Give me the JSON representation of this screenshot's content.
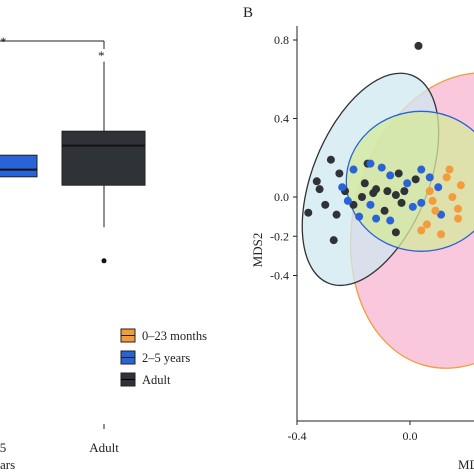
{
  "panel_a": {
    "significance": "*",
    "legend": [
      {
        "label": "0–23 months",
        "color": "#f39c3c"
      },
      {
        "label": "2–5 years",
        "color": "#2a62d8"
      },
      {
        "label": "Adult",
        "color": "#2f3338"
      }
    ],
    "x_tick_labels": [
      "5",
      "Adult"
    ],
    "x_tick_partial_below": "ars"
  },
  "panel_b": {
    "letter": "B",
    "xlabel": "MD",
    "ylabel": "MDS2"
  },
  "chart_data": [
    {
      "type": "box",
      "panel": "A",
      "categories": [
        "2–5 years",
        "Adult"
      ],
      "series": [
        {
          "name": "2–5 years",
          "color": "#2a62d8",
          "values": {
            "q1": -0.45,
            "median": -0.15,
            "q3": 0.45
          }
        },
        {
          "name": "Adult",
          "color": "#2f3338",
          "values": {
            "whisker_low": -2.55,
            "q1": -0.8,
            "median": 0.85,
            "q3": 1.45,
            "whisker_high": 4.35,
            "outliers": [
              -3.95
            ]
          }
        }
      ]
    },
    {
      "type": "scatter",
      "panel": "B",
      "xlabel": "MD",
      "ylabel": "MDS2",
      "xlim": [
        -0.45,
        0.2
      ],
      "ylim": [
        -0.56,
        0.82
      ],
      "x_ticks": [
        -0.4,
        0.0
      ],
      "y_ticks": [
        0.8,
        0.4,
        0.0,
        -0.2,
        -0.4
      ],
      "grid": false,
      "ellipses": [
        {
          "group": "0–23 months",
          "fill": "#f7b6d2",
          "stroke": "#f39c3c",
          "cx": 0.19,
          "cy": -0.12,
          "rx_px": 110,
          "ry_px": 150,
          "rotate_deg": 15
        },
        {
          "group": "Adult",
          "fill": "#cfe8ef",
          "stroke": "#2f3338",
          "cx": -0.14,
          "cy": 0.09,
          "rx_px": 58,
          "ry_px": 112,
          "rotate_deg": 22
        },
        {
          "group": "2–5 years",
          "fill": "#d4ea9a",
          "stroke": "#2a62d8",
          "cx": 0.04,
          "cy": 0.08,
          "rx_px": 75,
          "ry_px": 70,
          "rotate_deg": 0
        }
      ],
      "series": [
        {
          "name": "Adult",
          "color": "#2f3338",
          "points": [
            [
              0.03,
              0.77
            ],
            [
              -0.28,
              0.19
            ],
            [
              -0.25,
              0.12
            ],
            [
              -0.32,
              0.04
            ],
            [
              -0.33,
              0.08
            ],
            [
              -0.3,
              -0.04
            ],
            [
              -0.36,
              -0.08
            ],
            [
              -0.2,
              -0.04
            ],
            [
              -0.23,
              0.03
            ],
            [
              -0.16,
              0.07
            ],
            [
              -0.12,
              0.04
            ],
            [
              -0.08,
              0.03
            ],
            [
              -0.05,
              0.01
            ],
            [
              -0.02,
              0.03
            ],
            [
              -0.13,
              0.02
            ],
            [
              -0.17,
              0.0
            ],
            [
              -0.26,
              -0.09
            ],
            [
              -0.27,
              -0.22
            ],
            [
              -0.05,
              -0.18
            ],
            [
              -0.15,
              0.17
            ],
            [
              -0.04,
              0.12
            ],
            [
              0.02,
              0.09
            ],
            [
              -0.03,
              -0.03
            ],
            [
              -0.09,
              -0.07
            ]
          ]
        },
        {
          "name": "2–5 years",
          "color": "#2a62d8",
          "points": [
            [
              -0.2,
              0.14
            ],
            [
              -0.14,
              0.17
            ],
            [
              -0.1,
              0.15
            ],
            [
              -0.07,
              0.11
            ],
            [
              -0.01,
              0.07
            ],
            [
              0.04,
              0.14
            ],
            [
              0.07,
              0.1
            ],
            [
              -0.24,
              0.05
            ],
            [
              -0.22,
              -0.02
            ],
            [
              -0.14,
              -0.04
            ],
            [
              -0.12,
              -0.11
            ],
            [
              -0.07,
              -0.12
            ],
            [
              0.01,
              -0.05
            ],
            [
              0.04,
              -0.03
            ],
            [
              0.1,
              0.05
            ],
            [
              0.11,
              -0.09
            ],
            [
              -0.18,
              -0.1
            ]
          ]
        },
        {
          "name": "0–23 months",
          "color": "#f39c3c",
          "points": [
            [
              0.14,
              0.14
            ],
            [
              0.15,
              0.0
            ],
            [
              0.07,
              0.03
            ],
            [
              0.17,
              -0.11
            ],
            [
              0.09,
              -0.07
            ],
            [
              0.04,
              -0.17
            ],
            [
              0.11,
              -0.19
            ],
            [
              0.17,
              -0.06
            ],
            [
              0.13,
              0.1
            ],
            [
              0.08,
              -0.02
            ],
            [
              0.06,
              -0.14
            ],
            [
              0.18,
              0.06
            ]
          ]
        }
      ]
    }
  ]
}
